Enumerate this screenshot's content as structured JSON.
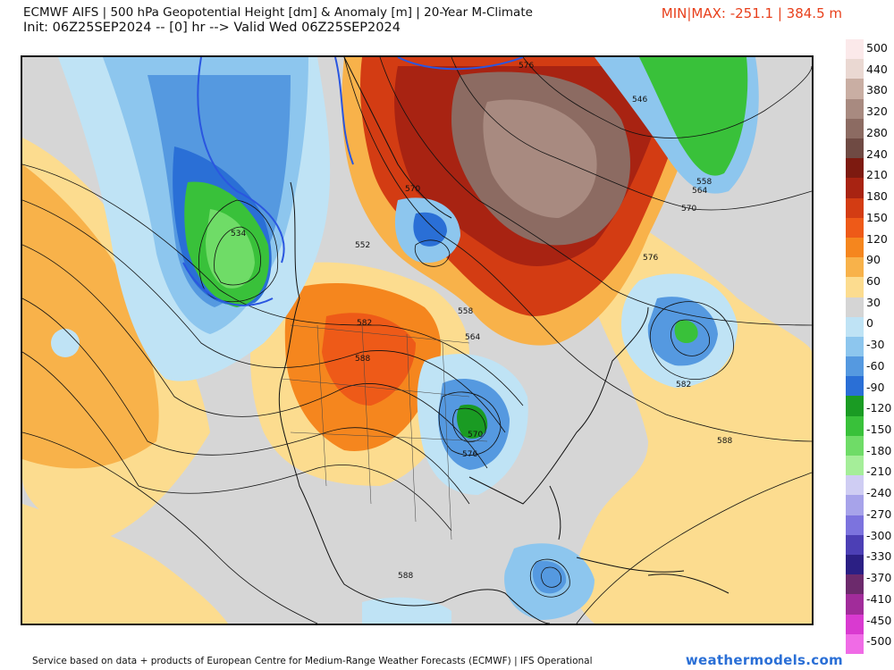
{
  "header": {
    "title_line1": "ECMWF AIFS | 500 hPa Geopotential Height [dm] & Anomaly [m] | 20-Year M-Climate",
    "title_line2": "Init: 06Z25SEP2024 -- [0] hr --> Valid Wed 06Z25SEP2024",
    "minmax": "MIN|MAX: -251.1 | 384.5 m"
  },
  "legend": {
    "labels": [
      "500",
      "440",
      "380",
      "320",
      "280",
      "240",
      "210",
      "180",
      "150",
      "120",
      "90",
      "60",
      "30",
      "0",
      "-30",
      "-60",
      "-90",
      "-120",
      "-150",
      "-180",
      "-210",
      "-240",
      "-270",
      "-300",
      "-330",
      "-370",
      "-410",
      "-450",
      "-500"
    ],
    "colors": [
      "#fbe9ea",
      "#ead8d2",
      "#c9aea3",
      "#a88a80",
      "#8c6b62",
      "#6f4a43",
      "#7d1a10",
      "#a82312",
      "#d33c13",
      "#ee5a18",
      "#f5861e",
      "#f8b24a",
      "#fcdc8f",
      "#d5d5d5",
      "#bfe3f5",
      "#8dc6ee",
      "#5599e0",
      "#2a6fd6",
      "#1a9b23",
      "#39c13a",
      "#6fdc67",
      "#a5ee99",
      "#cfcdf3",
      "#a7a3ea",
      "#7c73de",
      "#4c3fb5",
      "#2b1f84",
      "#6c2a6c",
      "#a12c9a",
      "#d93ad0",
      "#f06be6"
    ]
  },
  "map": {
    "contour_labels": [
      "534",
      "552",
      "558",
      "564",
      "570",
      "576",
      "582",
      "588",
      "546",
      "558",
      "564",
      "570",
      "576",
      "582",
      "588",
      "570",
      "576",
      "582",
      "588",
      "582",
      "588",
      "570",
      "576"
    ]
  },
  "footer": {
    "credit": "Service based on data + products of European Centre for Medium-Range Weather Forecasts (ECMWF) | IFS Operational",
    "brand": "weathermodels.com"
  }
}
